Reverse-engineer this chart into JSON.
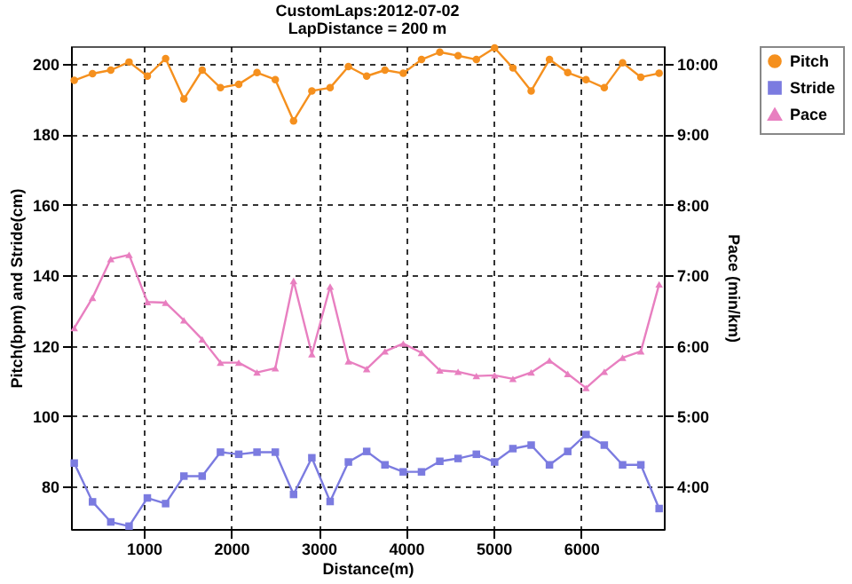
{
  "chart_data": {
    "type": "line",
    "title": "CustomLaps:2012-07-02",
    "subtitle": "LapDistance = 200 m",
    "xlabel": "Distance(m)",
    "ylabel": "Pitch(bpm) and Stride(cm)",
    "y2label": "Pace (min/km)",
    "x": [
      205,
      414,
      623,
      832,
      1041,
      1250,
      1459,
      1668,
      1877,
      2086,
      2295,
      2504,
      2713,
      2922,
      3131,
      3340,
      3549,
      3758,
      3967,
      4176,
      4385,
      4594,
      4803,
      5012,
      5221,
      5430,
      5639,
      5848,
      6057,
      6266,
      6475,
      6684,
      6893
    ],
    "xlim": [
      168,
      6947
    ],
    "xticks": [
      1000,
      2000,
      3000,
      4000,
      5000,
      6000
    ],
    "ylim": [
      68,
      205
    ],
    "yticks": [
      80,
      100,
      120,
      140,
      160,
      180,
      200
    ],
    "y2lim": [
      3.4,
      10.25
    ],
    "y2ticks": [
      {
        "value": 4,
        "label": "4:00"
      },
      {
        "value": 5,
        "label": "5:00"
      },
      {
        "value": 6,
        "label": "6:00"
      },
      {
        "value": 7,
        "label": "7:00"
      },
      {
        "value": 8,
        "label": "8:00"
      },
      {
        "value": 9,
        "label": "9:00"
      },
      {
        "value": 10,
        "label": "10:00"
      }
    ],
    "grid": true,
    "legend": "top right",
    "line_style": "solid",
    "series": [
      {
        "name": "Pitch",
        "color": "#f5901e",
        "marker": "circle",
        "values": [
          195.3,
          197.2,
          198.2,
          200.5,
          196.5,
          201.5,
          190,
          198.2,
          193.2,
          194.2,
          197.5,
          195.5,
          183.8,
          192.3,
          193.2,
          199.2,
          196.5,
          198.2,
          197.3,
          201.2,
          203.3,
          202.3,
          201.2,
          204.5,
          198.8,
          192.3,
          201.2,
          197.5,
          195.5,
          193.2,
          200.3,
          196.2,
          197.3
        ]
      },
      {
        "name": "Stride",
        "color": "#7b7be0",
        "marker": "square",
        "values": [
          86.7,
          75.7,
          70,
          68.8,
          76.8,
          75.2,
          83,
          83,
          89.8,
          89.2,
          89.8,
          89.8,
          77.8,
          88.2,
          75.8,
          87,
          90,
          86.2,
          84.2,
          84.2,
          87.2,
          88,
          89.2,
          87,
          90.8,
          91.8,
          86.2,
          90,
          94.8,
          91.8,
          86.2,
          86.2,
          73.8
        ]
      },
      {
        "name": "Pace",
        "color": "#e87fc0",
        "marker": "triangle",
        "axis": "y2",
        "values": [
          6.25,
          6.68,
          7.23,
          7.29,
          6.62,
          6.61,
          6.36,
          6.09,
          5.76,
          5.76,
          5.62,
          5.68,
          6.92,
          5.88,
          6.84,
          5.78,
          5.67,
          5.92,
          6.03,
          5.9,
          5.65,
          5.63,
          5.57,
          5.58,
          5.53,
          5.62,
          5.79,
          5.6,
          5.4,
          5.63,
          5.83,
          5.92,
          6.87
        ]
      }
    ]
  }
}
